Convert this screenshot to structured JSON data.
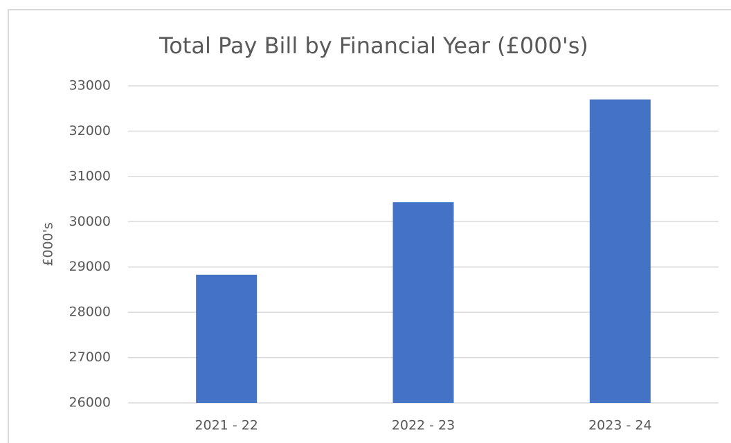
{
  "chart_data": {
    "type": "bar",
    "title": "Total Pay Bill by Financial Year (£000's)",
    "y_label": "£000's",
    "categories": [
      "2021 - 22",
      "2022 - 23",
      "2023 - 24"
    ],
    "values": [
      28830,
      30430,
      32700
    ],
    "color": "#4472c4",
    "ylim": [
      26000,
      33000
    ],
    "yticks": [
      26000,
      27000,
      28000,
      29000,
      30000,
      31000,
      32000,
      33000
    ],
    "grid": true
  }
}
